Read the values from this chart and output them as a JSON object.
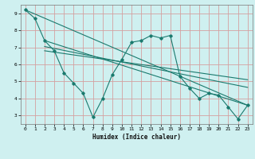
{
  "title": "",
  "xlabel": "Humidex (Indice chaleur)",
  "bg_color": "#cff0f0",
  "grid_color": "#d4a0a0",
  "line_color": "#1a7a6e",
  "xlim": [
    -0.5,
    23.5
  ],
  "ylim": [
    2.5,
    9.5
  ],
  "xticks": [
    0,
    1,
    2,
    3,
    4,
    5,
    6,
    7,
    8,
    9,
    10,
    11,
    12,
    13,
    14,
    15,
    16,
    17,
    18,
    19,
    20,
    21,
    22,
    23
  ],
  "yticks": [
    3,
    4,
    5,
    6,
    7,
    8,
    9
  ],
  "jagged_x": [
    0,
    1,
    2,
    3,
    4,
    5,
    6,
    7,
    8,
    9,
    10,
    11,
    12,
    13,
    14,
    15,
    16,
    17,
    18,
    19,
    20,
    21,
    22,
    23
  ],
  "jagged_y": [
    9.2,
    8.7,
    7.4,
    6.8,
    5.5,
    4.9,
    4.3,
    2.9,
    4.0,
    5.4,
    6.3,
    7.3,
    7.4,
    7.7,
    7.55,
    7.7,
    5.3,
    4.6,
    4.0,
    4.3,
    4.2,
    3.5,
    2.8,
    3.6
  ],
  "line1_x": [
    0,
    23
  ],
  "line1_y": [
    9.2,
    3.6
  ],
  "line2_x": [
    2,
    23
  ],
  "line2_y": [
    7.4,
    3.6
  ],
  "line3_x": [
    2,
    23
  ],
  "line3_y": [
    7.05,
    4.65
  ],
  "line4_x": [
    2,
    23
  ],
  "line4_y": [
    6.8,
    5.1
  ]
}
